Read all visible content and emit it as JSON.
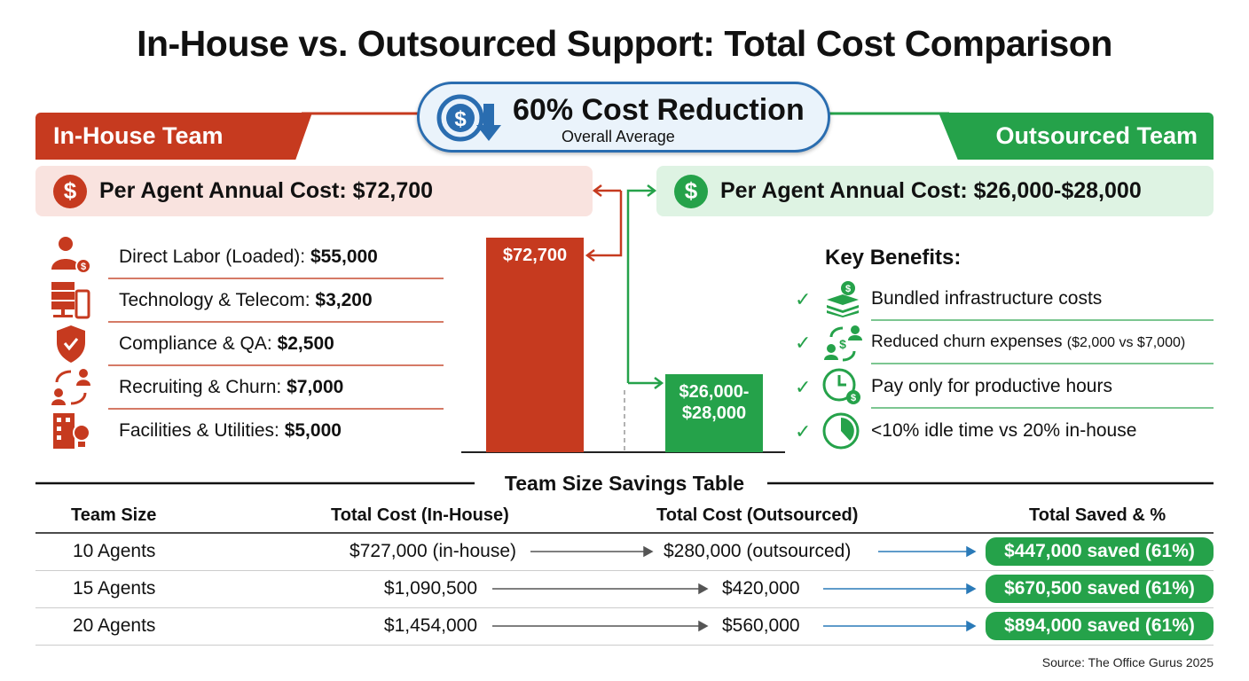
{
  "title": "In-House vs. Outsourced Support: Total Cost Comparison",
  "badge": {
    "main": "60% Cost Reduction",
    "sub": "Overall Average",
    "icon": "dollar-down-arrow-icon"
  },
  "colors": {
    "in_house": "#c63a1f",
    "outsourced": "#25a24a",
    "badge": "#2a6db0",
    "arrow_blue": "#2a7ab8"
  },
  "in_house": {
    "header": "In-House Team",
    "per_agent": "Per Agent Annual Cost: $72,700",
    "items": [
      {
        "label": "Direct Labor (Loaded): ",
        "value": "$55,000",
        "icon": "person-dollar-icon"
      },
      {
        "label": "Technology & Telecom: ",
        "value": "$3,200",
        "icon": "server-phone-icon"
      },
      {
        "label": "Compliance & QA: ",
        "value": "$2,500",
        "icon": "shield-check-icon"
      },
      {
        "label": "Recruiting & Churn: ",
        "value": "$7,000",
        "icon": "people-cycle-icon"
      },
      {
        "label": "Facilities & Utilities: ",
        "value": "$5,000",
        "icon": "building-bulb-icon"
      }
    ]
  },
  "outsourced": {
    "header": "Outsourced Team",
    "per_agent": "Per Agent Annual Cost: $26,000-$28,000",
    "benefits_title": "Key Benefits:",
    "benefits": [
      {
        "text": "Bundled infrastructure costs",
        "note": "",
        "icon": "money-stack-icon"
      },
      {
        "text": "Reduced churn expenses ",
        "note": "($2,000 vs $7,000)",
        "icon": "people-dollar-cycle-icon"
      },
      {
        "text": "Pay only for productive hours",
        "note": "",
        "icon": "clock-dollar-icon"
      },
      {
        "text": "<10% idle time vs 20% in-house",
        "note": "",
        "icon": "pie-timer-icon"
      }
    ]
  },
  "chart_data": {
    "type": "bar",
    "categories": [
      "In-House",
      "Outsourced"
    ],
    "values": [
      72700,
      27000
    ],
    "ranges": [
      null,
      [
        26000,
        28000
      ]
    ],
    "data_labels": [
      "$72,700",
      "$26,000-\n$28,000"
    ]
  },
  "table": {
    "title": "Team Size Savings Table",
    "headers": [
      "Team Size",
      "Total Cost (In-House)",
      "Total Cost (Outsourced)",
      "Total Saved & %"
    ],
    "rows": [
      [
        "10 Agents",
        "$727,000 (in-house)",
        "$280,000 (outsourced)",
        "$447,000 saved (61%)"
      ],
      [
        "15 Agents",
        "$1,090,500",
        "$420,000",
        "$670,500 saved (61%)"
      ],
      [
        "20 Agents",
        "$1,454,000",
        "$560,000",
        "$894,000 saved (61%)"
      ]
    ]
  },
  "source": "Source: The Office Gurus 2025"
}
